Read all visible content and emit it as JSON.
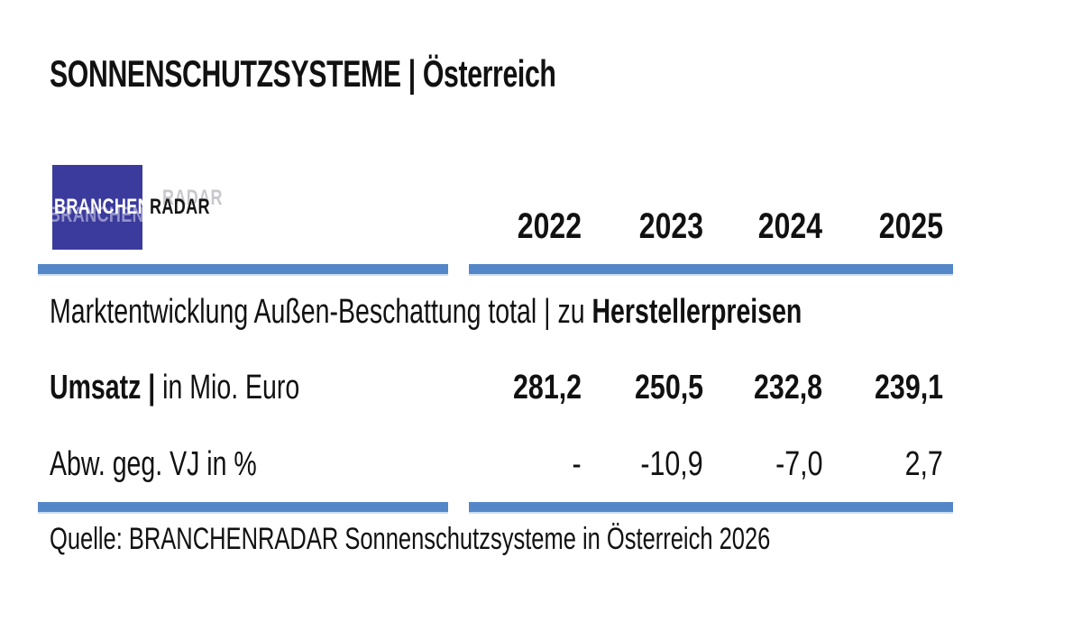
{
  "title": "SONNENSCHUTZSYSTEME | Österreich",
  "logo": {
    "part1": "BRANCHEN",
    "part2": "RADAR"
  },
  "table": {
    "years": [
      "2022",
      "2023",
      "2024",
      "2025"
    ],
    "section": {
      "regular": "Marktentwicklung Außen-Beschattung total | zu ",
      "bold": "Herstellerpreisen"
    },
    "rows": [
      {
        "label_bold": "Umsatz | ",
        "label_regular": "in Mio. Euro",
        "values": [
          "281,2",
          "250,5",
          "232,8",
          "239,1"
        ]
      },
      {
        "label_bold": "",
        "label_regular": "Abw. geg. VJ in %",
        "values": [
          "-",
          "-10,9",
          "-7,0",
          "2,7"
        ]
      }
    ]
  },
  "footer": "Quelle: BRANCHENRADAR Sonnenschutzsysteme in Österreich 2026",
  "colors": {
    "bar_blue": "#5487C8",
    "bar_edge": "#CBDCEF",
    "logo_blue": "#3B3B9D",
    "text": "#111111"
  },
  "chart_data": {
    "type": "table",
    "title": "SONNENSCHUTZSYSTEME | Österreich",
    "subtitle": "Marktentwicklung Außen-Beschattung total | zu Herstellerpreisen",
    "categories": [
      "2022",
      "2023",
      "2024",
      "2025"
    ],
    "series": [
      {
        "name": "Umsatz | in Mio. Euro",
        "values": [
          281.2,
          250.5,
          232.8,
          239.1
        ]
      },
      {
        "name": "Abw. geg. VJ in %",
        "values": [
          null,
          -10.9,
          -7.0,
          2.7
        ]
      }
    ],
    "source": "Quelle: BRANCHENRADAR Sonnenschutzsysteme in Österreich 2026"
  }
}
